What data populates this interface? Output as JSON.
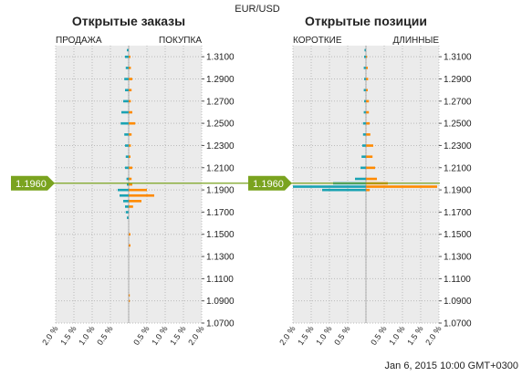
{
  "chart_title": "EUR/USD",
  "timestamp": "Jan 6, 2015 10:00 GMT+0300",
  "colors": {
    "short": "#1aa3b3",
    "long": "#ff8a00",
    "price": "#7aa31f",
    "plot_bg": "#ebebeb",
    "grid": "#bbbbbb"
  },
  "price_value": 1.196,
  "price_label": "1.1960",
  "chart_data": [
    {
      "type": "bar",
      "title": "Открытые заказы",
      "left_label": "ПРОДАЖА",
      "right_label": "ПОКУПКА",
      "y_ticks": [
        "1.3100",
        "1.2900",
        "1.2700",
        "1.2500",
        "1.2300",
        "1.2100",
        "1.1900",
        "1.1700",
        "1.1500",
        "1.1300",
        "1.1100",
        "1.0900",
        "1.0700"
      ],
      "x_ticks": [
        "2.0 %",
        "1.5 %",
        "1.0 %",
        "0.5 %",
        "",
        "0.5 %",
        "1.0 %",
        "1.5 %",
        "2.0 %"
      ],
      "ylim": [
        1.07,
        1.32
      ],
      "xlim": [
        -2.0,
        2.0
      ],
      "series": [
        {
          "name": "ПРОДАЖА",
          "color_key": "short",
          "x": [
            1.316,
            1.31,
            1.3,
            1.29,
            1.28,
            1.27,
            1.26,
            1.25,
            1.24,
            1.23,
            1.22,
            1.21,
            1.2,
            1.195,
            1.19,
            1.185,
            1.18,
            1.175,
            1.17,
            1.165
          ],
          "values": [
            0.05,
            0.1,
            0.08,
            0.12,
            0.1,
            0.15,
            0.2,
            0.22,
            0.12,
            0.1,
            0.08,
            0.1,
            0.06,
            0.05,
            0.3,
            0.25,
            0.15,
            0.1,
            0.08,
            0.05
          ]
        },
        {
          "name": "ПОКУПКА",
          "color_key": "long",
          "x": [
            1.31,
            1.3,
            1.29,
            1.28,
            1.27,
            1.26,
            1.25,
            1.24,
            1.23,
            1.22,
            1.21,
            1.2,
            1.195,
            1.19,
            1.185,
            1.18,
            1.175,
            1.15,
            1.14,
            1.095,
            1.09
          ],
          "values": [
            0.05,
            0.06,
            0.1,
            0.08,
            0.06,
            0.1,
            0.18,
            0.08,
            0.06,
            0.05,
            0.1,
            0.08,
            0.1,
            0.5,
            0.7,
            0.35,
            0.12,
            0.05,
            0.05,
            0.03,
            0.03
          ]
        }
      ]
    },
    {
      "type": "bar",
      "title": "Открытые позиции",
      "left_label": "КОРОТКИЕ",
      "right_label": "ДЛИННЫЕ",
      "y_ticks": [
        "1.3100",
        "1.2900",
        "1.2700",
        "1.2500",
        "1.2300",
        "1.2100",
        "1.1900",
        "1.1700",
        "1.1500",
        "1.1300",
        "1.1100",
        "1.0900",
        "1.0700"
      ],
      "x_ticks": [
        "2.0 %",
        "1.5 %",
        "1.0 %",
        "0.5 %",
        "",
        "0.5 %",
        "1.0 %",
        "1.5 %",
        "2.0 %"
      ],
      "ylim": [
        1.07,
        1.32
      ],
      "xlim": [
        -2.0,
        2.0
      ],
      "series": [
        {
          "name": "КОРОТКИЕ",
          "color_key": "short",
          "x": [
            1.316,
            1.31,
            1.3,
            1.29,
            1.28,
            1.27,
            1.26,
            1.25,
            1.24,
            1.23,
            1.22,
            1.21,
            1.2,
            1.196,
            1.193,
            1.19
          ],
          "values": [
            0.04,
            0.05,
            0.06,
            0.05,
            0.06,
            0.05,
            0.06,
            0.08,
            0.08,
            0.1,
            0.12,
            0.15,
            0.3,
            0.9,
            2.0,
            1.2
          ]
        },
        {
          "name": "ДЛИННЫЕ",
          "color_key": "long",
          "x": [
            1.31,
            1.3,
            1.29,
            1.28,
            1.27,
            1.26,
            1.25,
            1.24,
            1.23,
            1.22,
            1.21,
            1.2,
            1.196,
            1.193,
            1.19
          ],
          "values": [
            0.03,
            0.05,
            0.06,
            0.05,
            0.08,
            0.08,
            0.1,
            0.12,
            0.2,
            0.18,
            0.25,
            0.3,
            0.6,
            1.95,
            0.1
          ]
        }
      ]
    }
  ]
}
